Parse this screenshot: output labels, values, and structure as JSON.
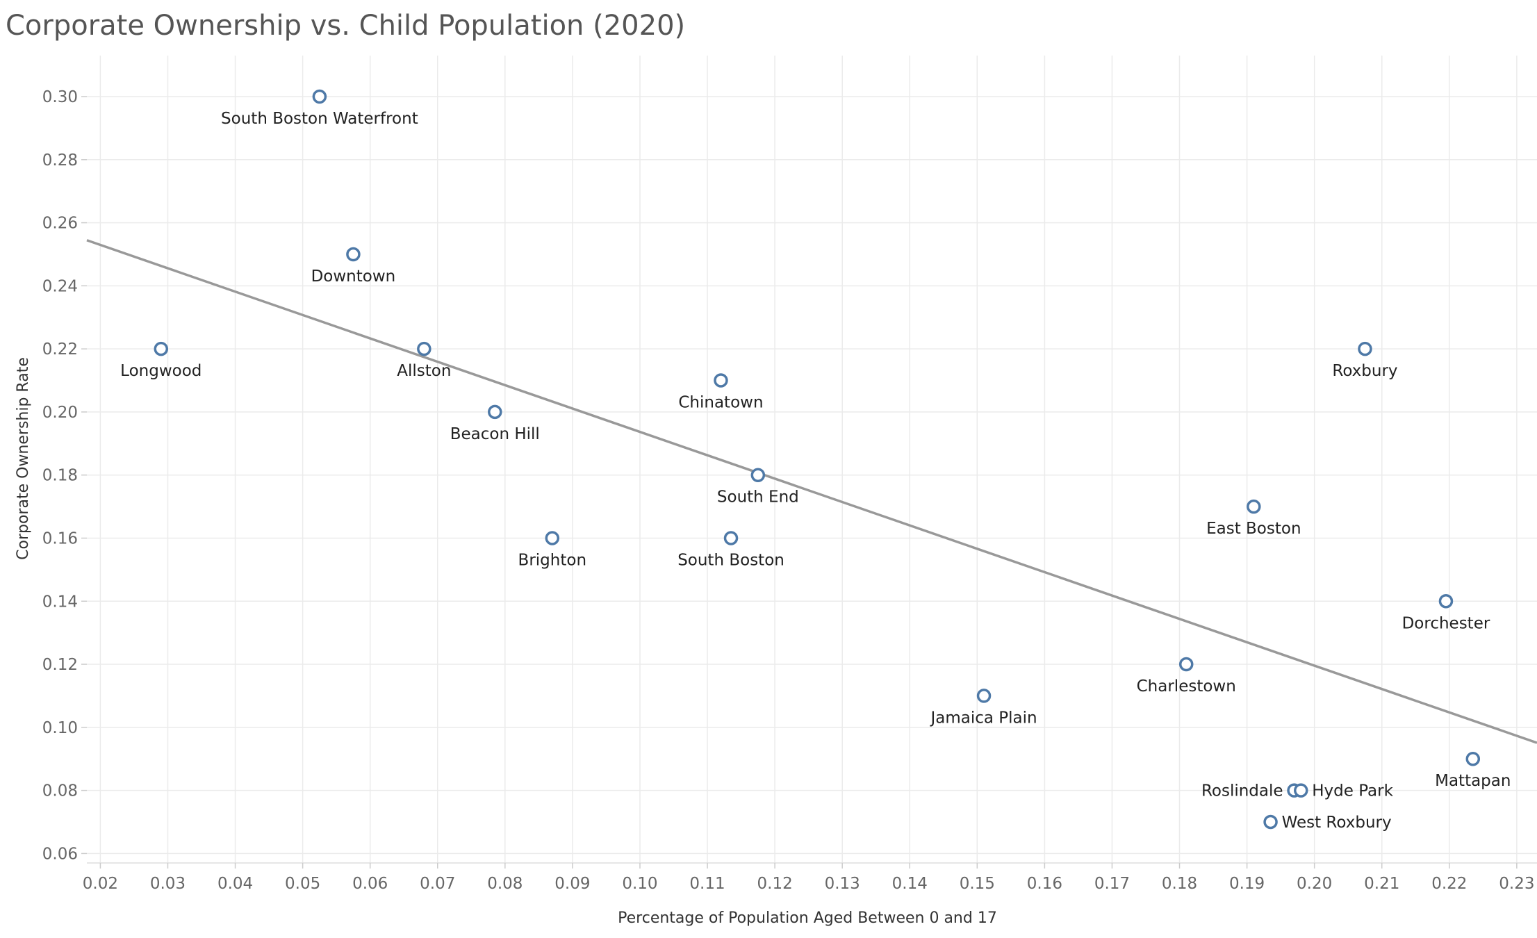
{
  "chart_data": {
    "type": "scatter",
    "title": "Corporate Ownership vs. Child Population (2020)",
    "xlabel": "Percentage of Population Aged Between 0 and 17",
    "ylabel": "Corporate Ownership Rate",
    "xlim": [
      0.018,
      0.233
    ],
    "ylim": [
      0.057,
      0.313
    ],
    "x_ticks": [
      0.02,
      0.03,
      0.04,
      0.05,
      0.06,
      0.07,
      0.08,
      0.09,
      0.1,
      0.11,
      0.12,
      0.13,
      0.14,
      0.15,
      0.16,
      0.17,
      0.18,
      0.19,
      0.2,
      0.21,
      0.22,
      0.23
    ],
    "y_ticks": [
      0.06,
      0.08,
      0.1,
      0.12,
      0.14,
      0.16,
      0.18,
      0.2,
      0.22,
      0.24,
      0.26,
      0.28,
      0.3
    ],
    "grid": true,
    "trend_line": {
      "slope": -0.7412,
      "intercept": 0.2678
    },
    "colors": {
      "point": "#4e79a7",
      "trend": "#999999",
      "grid": "#ebebeb"
    },
    "points": [
      {
        "label": "South Boston Waterfront",
        "x": 0.0525,
        "y": 0.3,
        "label_pos": "below"
      },
      {
        "label": "Downtown",
        "x": 0.0575,
        "y": 0.25,
        "label_pos": "below"
      },
      {
        "label": "Longwood",
        "x": 0.029,
        "y": 0.22,
        "label_pos": "below"
      },
      {
        "label": "Allston",
        "x": 0.068,
        "y": 0.22,
        "label_pos": "below"
      },
      {
        "label": "Beacon Hill",
        "x": 0.0785,
        "y": 0.2,
        "label_pos": "below"
      },
      {
        "label": "Chinatown",
        "x": 0.112,
        "y": 0.21,
        "label_pos": "below"
      },
      {
        "label": "South End",
        "x": 0.1175,
        "y": 0.18,
        "label_pos": "below"
      },
      {
        "label": "Brighton",
        "x": 0.087,
        "y": 0.16,
        "label_pos": "below"
      },
      {
        "label": "South Boston",
        "x": 0.1135,
        "y": 0.16,
        "label_pos": "below"
      },
      {
        "label": "Roxbury",
        "x": 0.2075,
        "y": 0.22,
        "label_pos": "below"
      },
      {
        "label": "East Boston",
        "x": 0.191,
        "y": 0.17,
        "label_pos": "below"
      },
      {
        "label": "Dorchester",
        "x": 0.2195,
        "y": 0.14,
        "label_pos": "below"
      },
      {
        "label": "Charlestown",
        "x": 0.181,
        "y": 0.12,
        "label_pos": "below"
      },
      {
        "label": "Jamaica Plain",
        "x": 0.151,
        "y": 0.11,
        "label_pos": "below"
      },
      {
        "label": "Mattapan",
        "x": 0.2235,
        "y": 0.09,
        "label_pos": "below"
      },
      {
        "label": "Roslindale",
        "x": 0.197,
        "y": 0.08,
        "label_pos": "left"
      },
      {
        "label": "Hyde Park",
        "x": 0.198,
        "y": 0.08,
        "label_pos": "right"
      },
      {
        "label": "West Roxbury",
        "x": 0.1935,
        "y": 0.07,
        "label_pos": "right"
      }
    ]
  }
}
